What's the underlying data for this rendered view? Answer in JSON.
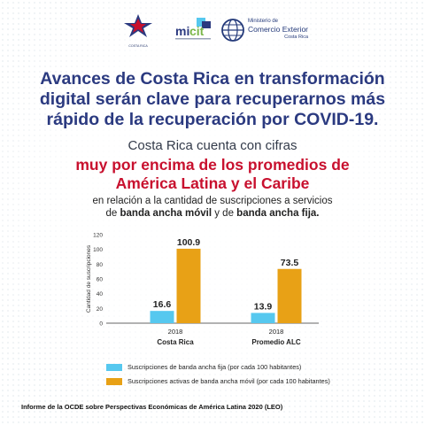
{
  "logos": {
    "cr_caption": "COSTA RICA\nCOMISIÓN DE ...",
    "micitt_text": "mi cit",
    "comex_line1": "Ministerio de",
    "comex_line2": "Comercio Exterior",
    "comex_line3": "Costa Rica"
  },
  "headline": {
    "line1": "Avances de Costa Rica en transformación",
    "line2": "digital serán clave para recuperarnos más",
    "line3": "rápido de la recuperación por COVID-19."
  },
  "subtitle": "Costa Rica cuenta con cifras",
  "highlight": {
    "line1": "muy por encima de los promedios de",
    "line2": "América Latina y el Caribe"
  },
  "relation": {
    "line1": "en relación a la cantidad de suscripciones a servicios",
    "line2_pre": "de ",
    "line2_b1": "banda ancha móvil",
    "line2_mid": " y de ",
    "line2_b2": "banda ancha fija."
  },
  "colors": {
    "fixed": "#56c8ef",
    "mobile": "#e8a116",
    "headline": "#2b3a80",
    "highlight": "#c8102e"
  },
  "chart_data": {
    "type": "bar",
    "categories": [
      "Costa Rica",
      "Promedio ALC"
    ],
    "category_years": [
      "2018",
      "2018"
    ],
    "series": [
      {
        "name": "Suscripciones de banda ancha fija (por cada 100 habitantes)",
        "values": [
          16.6,
          13.9
        ],
        "labels": [
          "16.6",
          "13.9"
        ]
      },
      {
        "name": "Suscripciones activas de banda ancha móvil (por cada 100 habitantes)",
        "values": [
          100.9,
          73.5
        ],
        "labels": [
          "100.9",
          "73.5"
        ]
      }
    ],
    "ylabel": "Cantidad de suscripciones",
    "ylim": [
      0,
      120
    ],
    "yticks": [
      "0",
      "20",
      "40",
      "60",
      "80",
      "100",
      "120"
    ],
    "legend_position": "bottom"
  },
  "source": "Informe de la OCDE sobre Perspectivas Económicas de América Latina 2020 (LEO)"
}
